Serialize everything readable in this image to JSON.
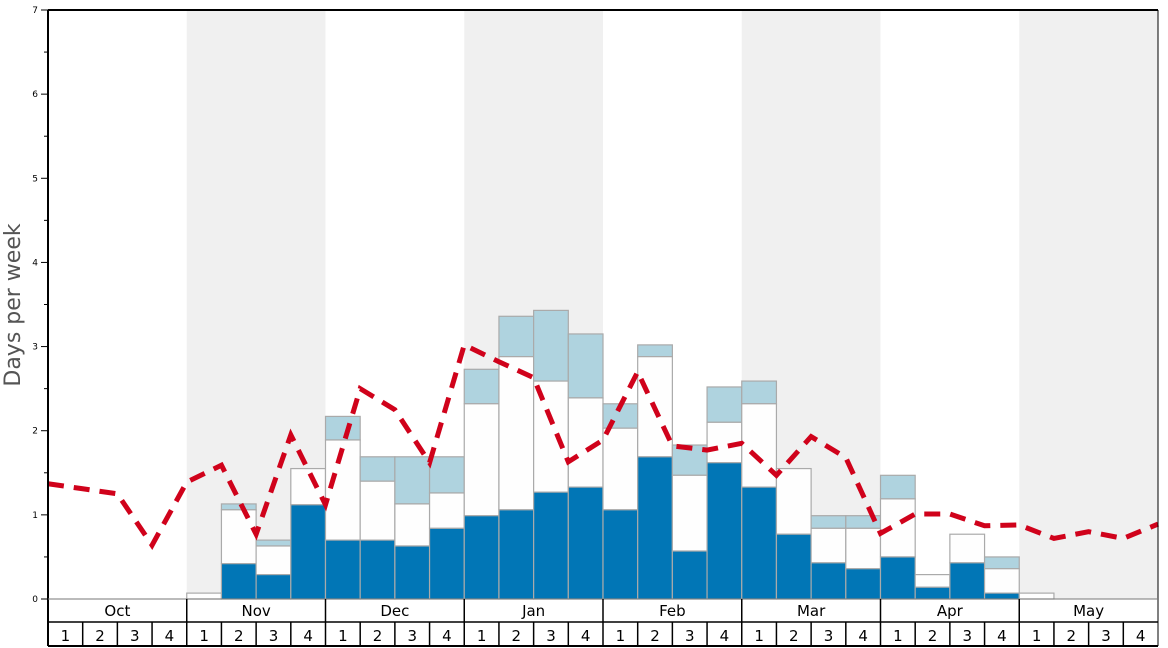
{
  "chart_data": {
    "type": "bar",
    "subtype": "stacked-bar-with-line",
    "ylabel": "Days per week",
    "ylim": [
      0,
      7
    ],
    "yticks": [
      "0",
      "1",
      "2",
      "3",
      "4",
      "5",
      "6",
      "7"
    ],
    "months": [
      "Oct",
      "Nov",
      "Dec",
      "Jan",
      "Feb",
      "Mar",
      "Apr",
      "May"
    ],
    "shaded_months": [
      "Nov",
      "Jan",
      "Mar",
      "May"
    ],
    "weeks": [
      "1",
      "2",
      "3",
      "4"
    ],
    "colors": {
      "bottom": "#0176b6",
      "middle": "#fefefe",
      "top": "#afd3df",
      "line": "#d0021b",
      "shade": "#f0f0f0",
      "bar_stroke": "#aaaaaa"
    },
    "stack_tops": {
      "bottom": [
        0,
        0,
        0,
        0,
        0,
        0.42,
        0.29,
        1.12,
        0.7,
        0.7,
        0.63,
        0.84,
        0.99,
        1.06,
        1.27,
        1.33,
        1.06,
        1.69,
        0.57,
        1.62,
        1.33,
        0.77,
        0.43,
        0.36,
        0.5,
        0.14,
        0.43,
        0.07,
        0,
        0,
        0,
        0
      ],
      "middle": [
        0,
        0,
        0,
        0,
        0.07,
        1.06,
        0.63,
        1.55,
        1.89,
        1.4,
        1.13,
        1.26,
        2.32,
        2.88,
        2.59,
        2.39,
        2.03,
        2.88,
        1.47,
        2.1,
        2.32,
        1.55,
        0.84,
        0.84,
        1.19,
        0.29,
        0.77,
        0.36,
        0.07,
        0,
        0,
        0
      ],
      "top": [
        0,
        0,
        0,
        0,
        0.07,
        1.13,
        0.7,
        1.55,
        2.17,
        1.69,
        1.69,
        1.69,
        2.73,
        3.36,
        3.43,
        3.15,
        2.32,
        3.02,
        1.83,
        2.52,
        2.59,
        1.55,
        0.99,
        0.99,
        1.47,
        0.29,
        0.77,
        0.5,
        0.07,
        0,
        0,
        0
      ]
    },
    "line": [
      1.37,
      1.31,
      1.25,
      0.64,
      1.39,
      1.59,
      0.77,
      1.95,
      1.12,
      2.5,
      2.25,
      1.62,
      3.02,
      2.82,
      2.63,
      1.63,
      1.89,
      2.7,
      1.82,
      1.77,
      1.85,
      1.47,
      1.93,
      1.68,
      0.78,
      1.01,
      1.01,
      0.87,
      0.88,
      0.72,
      0.8,
      0.72,
      0.89
    ]
  }
}
